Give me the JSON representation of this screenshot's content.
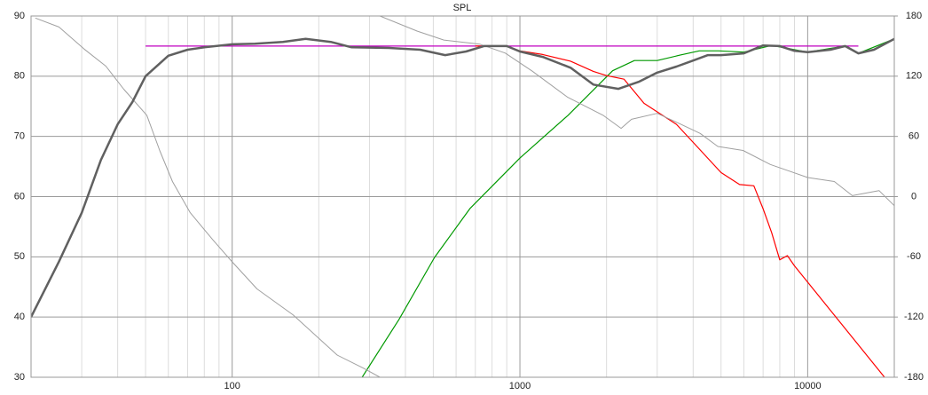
{
  "chart_data": {
    "type": "line",
    "title": "SPL",
    "log_x": true,
    "grid": true,
    "xlim": [
      20,
      20000
    ],
    "xticks": [
      100,
      1000,
      10000
    ],
    "ylim": [
      30,
      90
    ],
    "yticks": [
      30,
      40,
      50,
      60,
      70,
      80,
      90
    ],
    "y2lim": [
      -180,
      180
    ],
    "y2ticks": [
      -180,
      -120,
      -60,
      0,
      60,
      120,
      180
    ],
    "series": [
      {
        "color": "#c000c0",
        "width": 1.2,
        "x": [
          50,
          15000
        ],
        "values": [
          85,
          85
        ]
      },
      {
        "color": "#009900",
        "width": 1.2,
        "x": [
          283,
          380,
          505,
          670,
          1000,
          1470,
          2100,
          2500,
          3000,
          3600,
          4200,
          4900,
          6000,
          7500,
          10000,
          13500,
          15000,
          20000
        ],
        "values": [
          30,
          39.6,
          49.9,
          58,
          66.4,
          73.5,
          80.9,
          82.6,
          82.6,
          83.5,
          84.2,
          84.2,
          84,
          85.1,
          84,
          85,
          83.8,
          86.2
        ]
      },
      {
        "color": "#ff0000",
        "width": 1.2,
        "x": [
          700,
          900,
          1000,
          1200,
          1500,
          1800,
          2000,
          2300,
          2700,
          3500,
          4000,
          5000,
          5800,
          6500,
          7000,
          7500,
          8000,
          8500,
          9000,
          18500
        ],
        "values": [
          85,
          85,
          84.2,
          83.6,
          82.5,
          80.8,
          80.1,
          79.5,
          75.5,
          72,
          69,
          64,
          62,
          61.8,
          58,
          54,
          49.5,
          50.2,
          48.5,
          30
        ]
      },
      {
        "color": "#a0a0a0",
        "width": 1,
        "axis": "y2",
        "x": [
          20.7,
          25,
          30.6,
          36.4,
          42,
          50.5,
          56,
          62,
          71.5,
          85.6,
          100,
          122,
          163,
          232,
          286,
          326,
          326,
          326,
          439,
          544,
          725,
          889,
          1104,
          1466,
          1946,
          2248,
          2443,
          3000,
          3628,
          4231,
          4874,
          5962,
          7419,
          10000,
          12380,
          14300,
          17700,
          20000
        ],
        "values": [
          178,
          169,
          147,
          130,
          107,
          81,
          46,
          15,
          -16,
          -43,
          -65,
          -92,
          -118,
          -158,
          -171,
          -180,
          null,
          180,
          165,
          156,
          152,
          143,
          125,
          99,
          81,
          68,
          77,
          83,
          72,
          63,
          50,
          46,
          32,
          19,
          15,
          1,
          6,
          -9
        ]
      },
      {
        "color": "#606060",
        "width": 2.5,
        "x": [
          20,
          25,
          30,
          35,
          40,
          45,
          50,
          60,
          70,
          80,
          100,
          120,
          150,
          180,
          220,
          260,
          350,
          450,
          550,
          650,
          750,
          900,
          1000,
          1200,
          1500,
          1800,
          2200,
          2600,
          3000,
          3500,
          4000,
          4500,
          5000,
          6000,
          7000,
          8000,
          9000,
          10000,
          12000,
          13500,
          15000,
          17000,
          20000
        ],
        "values": [
          40,
          49.2,
          57.3,
          66.1,
          72,
          75.7,
          80,
          83.4,
          84.4,
          84.8,
          85.3,
          85.4,
          85.7,
          86.2,
          85.7,
          84.8,
          84.7,
          84.4,
          83.5,
          84.1,
          85,
          85,
          84.1,
          83.2,
          81.4,
          78.6,
          77.9,
          79.1,
          80.6,
          81.6,
          82.6,
          83.5,
          83.5,
          83.8,
          85.1,
          85,
          84.2,
          84,
          84.4,
          85,
          83.8,
          84.4,
          86.2
        ]
      }
    ]
  }
}
